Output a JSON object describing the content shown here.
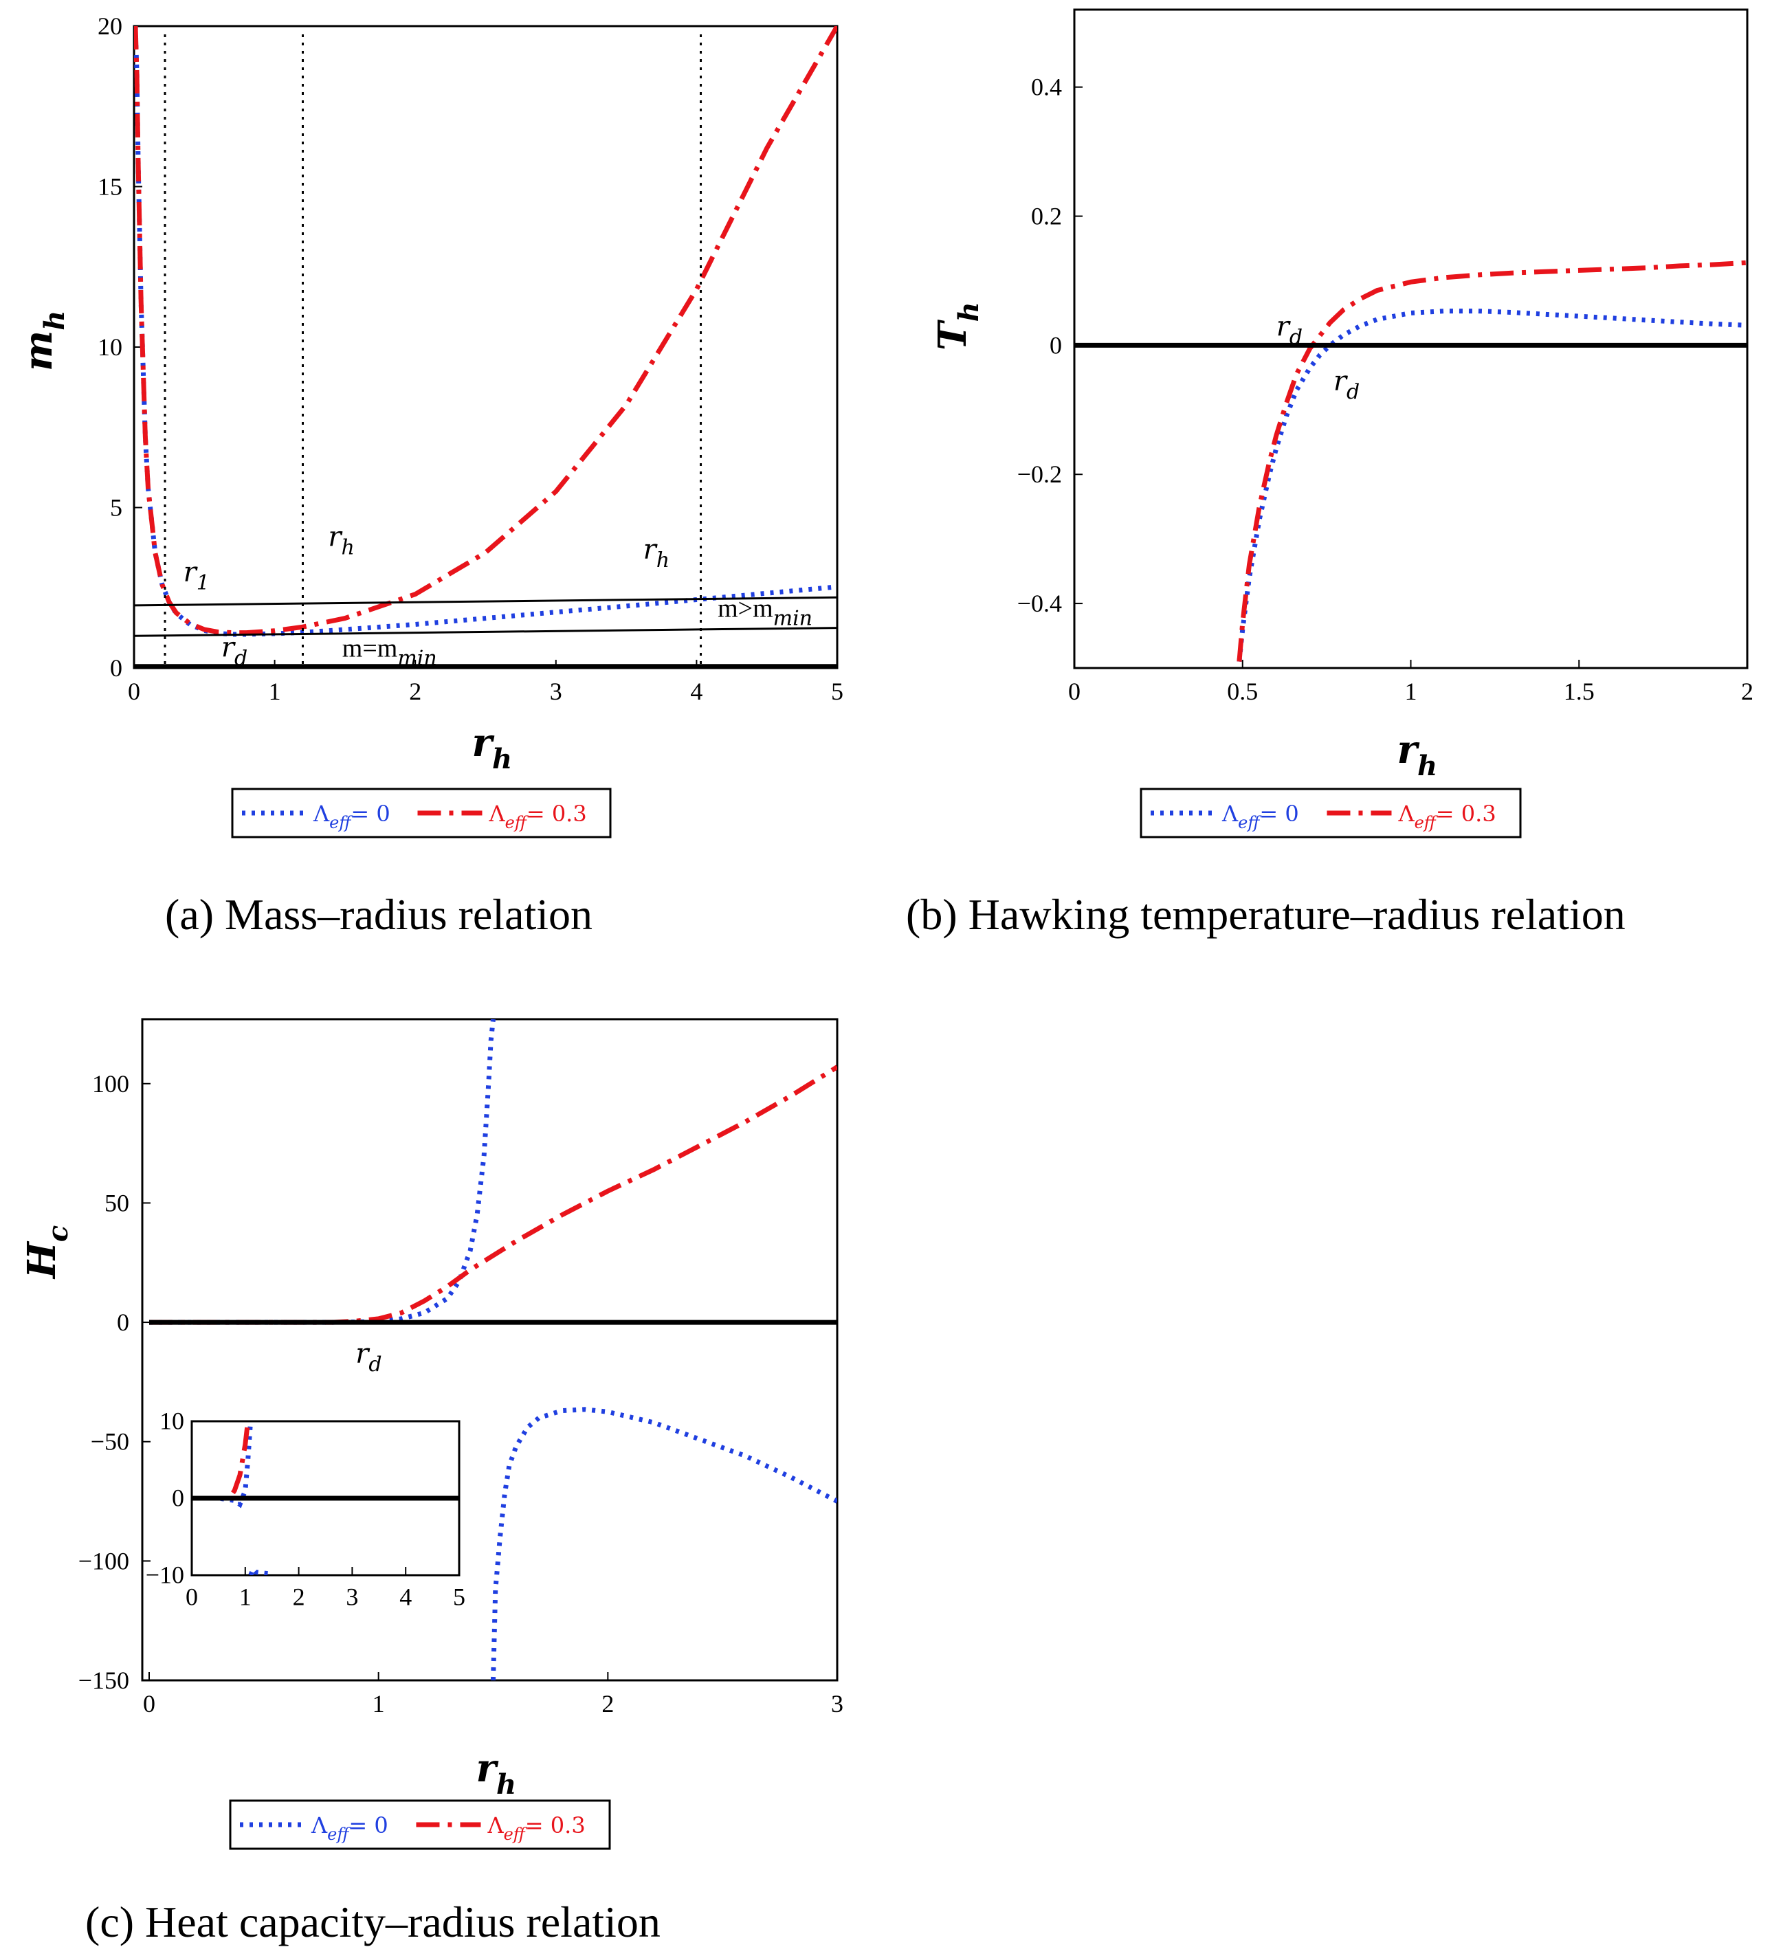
{
  "colors": {
    "lambda0": "#1f3fe0",
    "lambda03": "#e8141b",
    "axis": "#000000"
  },
  "legend": {
    "lambda_symbol": "Λ",
    "lambda_sub": "eff",
    "label0": "= 0",
    "label03": "= 0.3"
  },
  "captions": {
    "a": "(a)   Mass–radius relation",
    "b": "(b)  Hawking temperature–radius relation",
    "c": "(c)  Heat capacity–radius relation"
  },
  "chart_data": [
    {
      "id": "a",
      "type": "line",
      "title": "Mass–radius relation",
      "xlabel": "r",
      "xlabel_sub": "h",
      "ylabel": "m",
      "ylabel_sub": "h",
      "xlim": [
        0,
        5
      ],
      "ylim": [
        0,
        20
      ],
      "xticks": [
        "0",
        "1",
        "2",
        "3",
        "4",
        "5"
      ],
      "yticks": [
        "0",
        "5",
        "10",
        "15",
        "20"
      ],
      "series": [
        {
          "name": "Λeff = 0",
          "style": "dotted",
          "x": [
            0.01,
            0.02,
            0.03,
            0.05,
            0.08,
            0.1,
            0.15,
            0.2,
            0.25,
            0.3,
            0.4,
            0.5,
            0.6,
            0.7,
            0.8,
            1.0,
            1.2,
            1.5,
            2.0,
            2.5,
            3.0,
            3.5,
            4.0,
            4.5,
            5.0
          ],
          "y": [
            20,
            18.5,
            15.7,
            11.4,
            7.2,
            5.6,
            3.6,
            2.6,
            2.05,
            1.7,
            1.35,
            1.17,
            1.08,
            1.05,
            1.05,
            1.07,
            1.11,
            1.2,
            1.36,
            1.55,
            1.74,
            1.93,
            2.13,
            2.33,
            2.53
          ]
        },
        {
          "name": "Λeff = 0.3",
          "style": "dashdot",
          "x": [
            0.01,
            0.02,
            0.03,
            0.05,
            0.08,
            0.1,
            0.15,
            0.2,
            0.25,
            0.3,
            0.4,
            0.5,
            0.6,
            0.7,
            0.8,
            1.0,
            1.2,
            1.5,
            2.0,
            2.5,
            3.0,
            3.5,
            4.0,
            4.5,
            5.0
          ],
          "y": [
            20,
            18.5,
            15.7,
            11.4,
            7.2,
            5.6,
            3.6,
            2.6,
            2.05,
            1.72,
            1.38,
            1.2,
            1.12,
            1.1,
            1.1,
            1.16,
            1.28,
            1.55,
            2.3,
            3.6,
            5.5,
            8.2,
            11.8,
            16.2,
            20
          ]
        },
        {
          "name": "m > m_min",
          "style": "solid-thin",
          "x": [
            0,
            5
          ],
          "y": [
            1.95,
            2.2
          ]
        },
        {
          "name": "m = m_min",
          "style": "solid-thin",
          "x": [
            0,
            5
          ],
          "y": [
            1.0,
            1.25
          ]
        },
        {
          "name": "zero",
          "style": "solid-thick",
          "x": [
            0,
            5
          ],
          "y": [
            0.05,
            0.05
          ]
        }
      ],
      "vlines": [
        0.22,
        1.2,
        4.03
      ],
      "annotations": [
        {
          "text": "r",
          "sub": "1",
          "x": 0.35,
          "y": 2.7
        },
        {
          "text": "r",
          "sub": "d",
          "x": 0.62,
          "y": 0.35
        },
        {
          "text": "r",
          "sub": "h",
          "x": 1.38,
          "y": 3.8
        },
        {
          "text": "r",
          "sub": "h",
          "x": 3.62,
          "y": 3.4
        },
        {
          "text": "m>m",
          "sub": "min",
          "x": 4.15,
          "y": 1.6
        },
        {
          "text": "m=m",
          "sub": "min",
          "x": 1.48,
          "y": 0.35
        }
      ]
    },
    {
      "id": "b",
      "type": "line",
      "title": "Hawking temperature–radius relation",
      "xlabel": "r",
      "xlabel_sub": "h",
      "ylabel": "T",
      "ylabel_sub": "h",
      "xlim": [
        0,
        2
      ],
      "ylim": [
        -0.5,
        0.52
      ],
      "xticks": [
        "0",
        "0.5",
        "1",
        "1.5",
        "2"
      ],
      "yticks": [
        "−0.4",
        "−0.2",
        "0",
        "0.2",
        "0.4"
      ],
      "series": [
        {
          "name": "Λeff = 0",
          "style": "dotted",
          "x": [
            0.49,
            0.5,
            0.52,
            0.55,
            0.58,
            0.6,
            0.63,
            0.66,
            0.7,
            0.73,
            0.76,
            0.8,
            0.85,
            0.9,
            1.0,
            1.1,
            1.2,
            1.3,
            1.4,
            1.5,
            1.6,
            1.7,
            1.8,
            1.9,
            2.0
          ],
          "y": [
            -0.49,
            -0.44,
            -0.36,
            -0.27,
            -0.2,
            -0.16,
            -0.11,
            -0.07,
            -0.035,
            -0.015,
            0.0,
            0.016,
            0.03,
            0.04,
            0.05,
            0.053,
            0.053,
            0.051,
            0.048,
            0.045,
            0.042,
            0.039,
            0.036,
            0.033,
            0.031
          ]
        },
        {
          "name": "Λeff = 0.3",
          "style": "dashdot",
          "x": [
            0.49,
            0.5,
            0.52,
            0.55,
            0.58,
            0.6,
            0.63,
            0.66,
            0.7,
            0.73,
            0.76,
            0.8,
            0.85,
            0.9,
            1.0,
            1.1,
            1.2,
            1.3,
            1.4,
            1.5,
            1.6,
            1.7,
            1.8,
            1.9,
            2.0
          ],
          "y": [
            -0.49,
            -0.43,
            -0.34,
            -0.25,
            -0.18,
            -0.14,
            -0.09,
            -0.045,
            -0.005,
            0.015,
            0.035,
            0.055,
            0.072,
            0.085,
            0.098,
            0.105,
            0.109,
            0.112,
            0.114,
            0.116,
            0.118,
            0.12,
            0.123,
            0.125,
            0.128
          ]
        },
        {
          "name": "zero",
          "style": "solid-thick",
          "x": [
            0,
            2
          ],
          "y": [
            0,
            0
          ]
        }
      ],
      "annotations": [
        {
          "text": "r",
          "sub": "d",
          "x": 0.6,
          "y": 0.015,
          "color": "lambda03"
        },
        {
          "text": "r",
          "sub": "d",
          "x": 0.77,
          "y": -0.07,
          "color": "lambda0"
        }
      ]
    },
    {
      "id": "c",
      "type": "line",
      "title": "Heat capacity–radius relation",
      "xlabel": "r",
      "xlabel_sub": "h",
      "ylabel": "H",
      "ylabel_sub": "c",
      "xlim": [
        0,
        3
      ],
      "ylim": [
        -150,
        127
      ],
      "xticks": [
        "0",
        "1",
        "2",
        "3"
      ],
      "yticks": [
        "−150",
        "−100",
        "−50",
        "0",
        "50",
        "100"
      ],
      "series": [
        {
          "name": "Λeff = 0",
          "style": "dotted",
          "segments": [
            {
              "x": [
                0.0,
                0.5,
                0.8,
                1.0,
                1.1,
                1.2,
                1.3,
                1.35,
                1.4,
                1.43,
                1.46,
                1.48,
                1.49,
                1.5
              ],
              "y": [
                0,
                0,
                0,
                0.3,
                1.5,
                4,
                10,
                17,
                30,
                45,
                70,
                100,
                118,
                127
              ]
            },
            {
              "x": [
                1.5,
                1.51,
                1.53,
                1.55,
                1.57,
                1.6,
                1.65,
                1.7,
                1.8,
                1.9,
                2.0,
                2.2,
                2.4,
                2.6,
                2.8,
                3.0
              ],
              "y": [
                -150,
                -112,
                -90,
                -72,
                -60,
                -52,
                -44,
                -40,
                -37,
                -36.5,
                -37.5,
                -42,
                -49,
                -56,
                -65,
                -75
              ]
            }
          ]
        },
        {
          "name": "Λeff = 0.3",
          "style": "dashdot",
          "x": [
            0.0,
            0.5,
            0.8,
            0.9,
            1.0,
            1.1,
            1.2,
            1.3,
            1.4,
            1.5,
            1.6,
            1.8,
            2.0,
            2.2,
            2.4,
            2.6,
            2.8,
            3.0
          ],
          "y": [
            0,
            0,
            0,
            0.5,
            1.5,
            4,
            9,
            15,
            22,
            28,
            34,
            45,
            55,
            64,
            74,
            84,
            95,
            107
          ]
        },
        {
          "name": "zero",
          "style": "solid-thick",
          "x": [
            0,
            3
          ],
          "y": [
            0,
            0
          ]
        }
      ],
      "annotations": [
        {
          "text": "r",
          "sub": "d",
          "x": 0.9,
          "y": -17
        }
      ],
      "inset": {
        "xlim": [
          0,
          5
        ],
        "ylim": [
          -10,
          10
        ],
        "xticks": [
          "0",
          "1",
          "2",
          "3",
          "4",
          "5"
        ],
        "yticks": [
          "−10",
          "0",
          "10"
        ],
        "series": [
          {
            "name": "Λeff = 0",
            "style": "dotted",
            "segments": [
              {
                "x": [
                  0.0,
                  0.5,
                  0.8,
                  0.9,
                  1.0,
                  1.05,
                  1.1
                ],
                "y": [
                  0,
                  0,
                  -0.3,
                  -0.8,
                  1,
                  5,
                  10
                ]
              },
              {
                "x": [
                  1.1,
                  1.15,
                  1.2,
                  1.3,
                  1.45
                ],
                "y": [
                  -10,
                  -9.2,
                  -9.6,
                  -9.7,
                  -9.8
                ]
              }
            ]
          },
          {
            "name": "Λeff = 0.3",
            "style": "dashdot",
            "x": [
              0.0,
              0.5,
              0.7,
              0.8,
              0.9,
              1.0,
              1.05
            ],
            "y": [
              0,
              0,
              0,
              1,
              3,
              7,
              10
            ]
          },
          {
            "name": "zero",
            "style": "solid-thick",
            "x": [
              0,
              5
            ],
            "y": [
              0,
              0
            ]
          }
        ]
      }
    }
  ]
}
